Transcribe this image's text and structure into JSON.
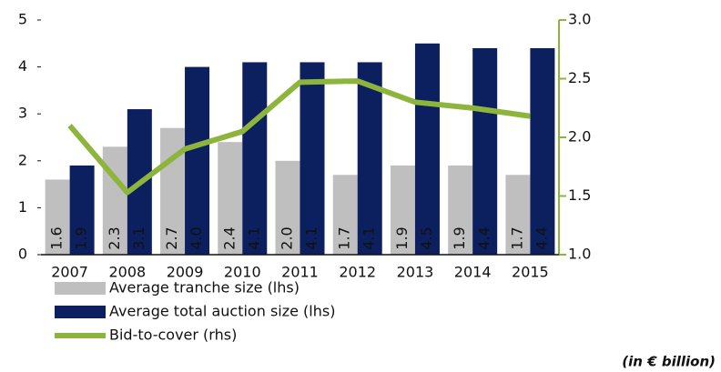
{
  "chart_data": {
    "type": "bar",
    "categories": [
      "2007",
      "2008",
      "2009",
      "2010",
      "2011",
      "2012",
      "2013",
      "2014",
      "2015"
    ],
    "series": [
      {
        "name": "Average tranche size (lhs)",
        "type": "bar",
        "color": "#bfbfbf",
        "values": [
          1.6,
          2.3,
          2.7,
          2.4,
          2.0,
          1.7,
          1.9,
          1.9,
          1.7
        ],
        "value_labels": [
          "1.6",
          "2.3",
          "2.7",
          "2.4",
          "2.0",
          "1.7",
          "1.9",
          "1.9",
          "1.7"
        ]
      },
      {
        "name": "Average total auction size (lhs)",
        "type": "bar",
        "color": "#0c1f5e",
        "values": [
          1.9,
          3.1,
          4.0,
          4.1,
          4.1,
          4.1,
          4.5,
          4.4,
          4.4
        ],
        "value_labels": [
          "1.9",
          "3.1",
          "4.0",
          "4.1",
          "4.1",
          "4.1",
          "4.5",
          "4.4",
          "4.4"
        ]
      },
      {
        "name": "Bid-to-cover (rhs)",
        "type": "line",
        "axis": "y2",
        "color": "#8db53c",
        "values": [
          2.1,
          1.53,
          1.9,
          2.05,
          2.47,
          2.48,
          2.3,
          2.25,
          2.18
        ]
      }
    ],
    "ylim": [
      0,
      5
    ],
    "yticks": [
      0,
      1,
      2,
      3,
      4,
      5
    ],
    "y2lim": [
      1,
      3
    ],
    "y2ticks": [
      {
        "value": 1,
        "label": "1.0"
      },
      {
        "value": 1.5,
        "label": "1.5"
      },
      {
        "value": 2,
        "label": "2.0"
      },
      {
        "value": 2.5,
        "label": "2.5"
      },
      {
        "value": 3,
        "label": "3.0"
      }
    ],
    "y2_color": "#8db53c",
    "grid": false,
    "annotation": "(in € billion)"
  }
}
